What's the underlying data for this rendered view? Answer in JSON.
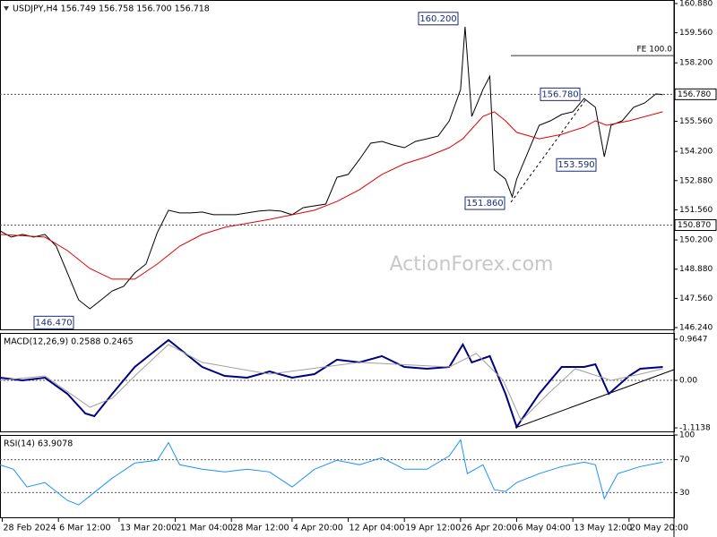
{
  "chart_data": [
    {
      "type": "line",
      "title": "USDJPY,H4  156.749 156.758 156.700 156.718",
      "watermark": "ActionForex.com",
      "xlim": [
        0,
        300
      ],
      "ylim": [
        146.16,
        161.04
      ],
      "yticks": [
        {
          "value": 160.88,
          "label": "160.880"
        },
        {
          "value": 159.56,
          "label": "159.560"
        },
        {
          "value": 158.2,
          "label": "158.200"
        },
        {
          "value": 155.56,
          "label": "155.560"
        },
        {
          "value": 154.2,
          "label": "154.200"
        },
        {
          "value": 152.88,
          "label": "152.880"
        },
        {
          "value": 151.56,
          "label": "151.560"
        },
        {
          "value": 150.2,
          "label": "150.200"
        },
        {
          "value": 148.88,
          "label": "148.880"
        },
        {
          "value": 147.56,
          "label": "147.560"
        },
        {
          "value": 146.24,
          "label": "146.240"
        }
      ],
      "series": [
        {
          "color": "#000000",
          "x": [
            0,
            5,
            10,
            15,
            20,
            25,
            30,
            35,
            40,
            45,
            50,
            55,
            60,
            65,
            70,
            75,
            80,
            85,
            90,
            95,
            100,
            105,
            110,
            115,
            120,
            125,
            130,
            135,
            140,
            145,
            150,
            155,
            160,
            165,
            170,
            175,
            180,
            185,
            190,
            195,
            200,
            205,
            207,
            210,
            215,
            218,
            220,
            225,
            228,
            230,
            235,
            240,
            245,
            250,
            255,
            260,
            265,
            269,
            272,
            277,
            282,
            287,
            292,
            295
          ],
          "values": [
            150.61,
            150.33,
            150.45,
            150.33,
            150.45,
            149.92,
            148.71,
            147.49,
            147.09,
            147.49,
            147.9,
            148.1,
            148.71,
            149.11,
            150.53,
            151.54,
            151.42,
            151.42,
            151.46,
            151.34,
            151.34,
            151.34,
            151.42,
            151.5,
            151.54,
            151.5,
            151.34,
            151.66,
            151.74,
            151.82,
            153.03,
            153.16,
            153.84,
            154.57,
            154.65,
            154.49,
            154.37,
            154.65,
            154.77,
            154.89,
            155.58,
            157.0,
            159.83,
            155.78,
            157.0,
            157.6,
            153.36,
            152.95,
            152.15,
            152.95,
            154.17,
            155.38,
            155.58,
            155.87,
            155.99,
            156.59,
            156.19,
            153.96,
            155.38,
            155.58,
            156.19,
            156.39,
            156.8,
            156.76
          ]
        },
        {
          "color": "#e00000",
          "x": [
            0,
            20,
            30,
            40,
            50,
            60,
            70,
            80,
            90,
            100,
            120,
            140,
            150,
            160,
            170,
            180,
            190,
            200,
            206,
            215,
            220,
            225,
            230,
            240,
            250,
            260,
            265,
            270,
            280,
            295
          ],
          "values": [
            150.45,
            150.33,
            149.72,
            148.91,
            148.43,
            148.43,
            149.11,
            149.92,
            150.45,
            150.77,
            151.13,
            151.54,
            151.94,
            152.47,
            153.16,
            153.64,
            153.96,
            154.37,
            154.77,
            155.78,
            155.99,
            155.58,
            155.06,
            154.77,
            154.97,
            155.3,
            155.58,
            155.38,
            155.58,
            155.99
          ]
        }
      ],
      "levels": [
        {
          "value": 156.78,
          "label": "156.780"
        },
        {
          "value": 150.87,
          "label": "150.870"
        }
      ],
      "annotations": [
        {
          "value": 160.2,
          "label": "160.200"
        },
        {
          "value": 156.78,
          "label": "156.780"
        },
        {
          "value": 153.59,
          "label": "153.590"
        },
        {
          "value": 151.86,
          "label": "151.860"
        },
        {
          "value": 146.47,
          "label": "146.470"
        }
      ],
      "projection": {
        "value": 158.53,
        "label": "FE 100.0"
      }
    },
    {
      "type": "line",
      "title": "MACD(12,26,9) 0.2588 0.2465",
      "xlim": [
        0,
        300
      ],
      "ylim": [
        -1.196,
        1.111
      ],
      "yticks": [
        0.9647,
        {
          "value": 0,
          "label": "0.00"
        },
        -1.1138
      ],
      "levels": [
        {
          "value": 0
        }
      ],
      "series": [
        {
          "color": "#000080",
          "width": 2,
          "x": [
            0,
            10,
            20,
            30,
            38,
            42,
            50,
            60,
            70,
            75,
            80,
            90,
            100,
            110,
            120,
            130,
            140,
            150,
            160,
            170,
            180,
            190,
            200,
            206,
            210,
            218,
            225,
            230,
            240,
            250,
            260,
            265,
            271,
            280,
            285,
            295
          ],
          "values": [
            0.063,
            0,
            0.063,
            -0.315,
            -0.777,
            -0.84,
            -0.315,
            0.315,
            0.735,
            0.945,
            0.735,
            0.315,
            0.105,
            0.063,
            0.21,
            0.063,
            0.147,
            0.483,
            0.42,
            0.567,
            0.315,
            0.273,
            0.315,
            0.84,
            0.42,
            0.567,
            -0.315,
            -1.092,
            -0.315,
            0.315,
            0.315,
            0.378,
            -0.315,
            0.105,
            0.273,
            0.315
          ]
        },
        {
          "color": "#a0a0a0",
          "width": 1,
          "x": [
            0,
            20,
            40,
            50,
            60,
            75,
            90,
            120,
            160,
            200,
            212,
            224,
            232,
            244,
            256,
            272,
            285,
            295
          ],
          "values": [
            0,
            0.105,
            -0.63,
            -0.42,
            0.105,
            0.84,
            0.42,
            0.147,
            0.42,
            0.315,
            0.63,
            0,
            -0.945,
            -0.315,
            0.273,
            0,
            0.147,
            0.273
          ]
        }
      ]
    },
    {
      "type": "line",
      "title": "RSI(14) 63.9078",
      "xlim": [
        0,
        300
      ],
      "ylim": [
        0,
        100
      ],
      "yticks": [
        100,
        70,
        30
      ],
      "levels": [
        {
          "value": 70
        },
        {
          "value": 30
        }
      ],
      "series": [
        {
          "color": "#1e90ff",
          "width": 1,
          "x": [
            0,
            6,
            12,
            20,
            30,
            35,
            40,
            50,
            60,
            70,
            75,
            80,
            90,
            100,
            110,
            120,
            130,
            140,
            150,
            160,
            170,
            180,
            190,
            200,
            205,
            208,
            215,
            220,
            225,
            230,
            240,
            250,
            260,
            265,
            269,
            275,
            285,
            295
          ],
          "values": [
            63.8,
            58.4,
            36.8,
            42.2,
            20.5,
            15.1,
            25.9,
            47.6,
            65.9,
            69.2,
            90.8,
            63.8,
            58.4,
            55.1,
            58.4,
            55.1,
            36.8,
            58.4,
            69.2,
            63.8,
            72.4,
            58.4,
            58.4,
            74.6,
            94.1,
            53,
            63.8,
            33.5,
            31.4,
            42.2,
            53,
            61.6,
            67,
            63.8,
            22.7,
            53,
            61.6,
            67
          ]
        }
      ],
      "xticks": [
        {
          "value": 1,
          "label": "28 Feb 2024"
        },
        {
          "value": 26,
          "label": "6 Mar 12:00"
        },
        {
          "value": 53,
          "label": "13 Mar 20:00"
        },
        {
          "value": 78,
          "label": "21 Mar 04:00"
        },
        {
          "value": 103,
          "label": "28 Mar 12:00"
        },
        {
          "value": 130,
          "label": "4 Apr 20:00"
        },
        {
          "value": 155,
          "label": "12 Apr 04:00"
        },
        {
          "value": 180,
          "label": "19 Apr 12:00"
        },
        {
          "value": 205,
          "label": "26 Apr 20:00"
        },
        {
          "value": 230,
          "label": "6 May 04:00"
        },
        {
          "value": 255,
          "label": "13 May 12:00"
        },
        {
          "value": 280,
          "label": "20 May 20:00"
        }
      ]
    }
  ]
}
